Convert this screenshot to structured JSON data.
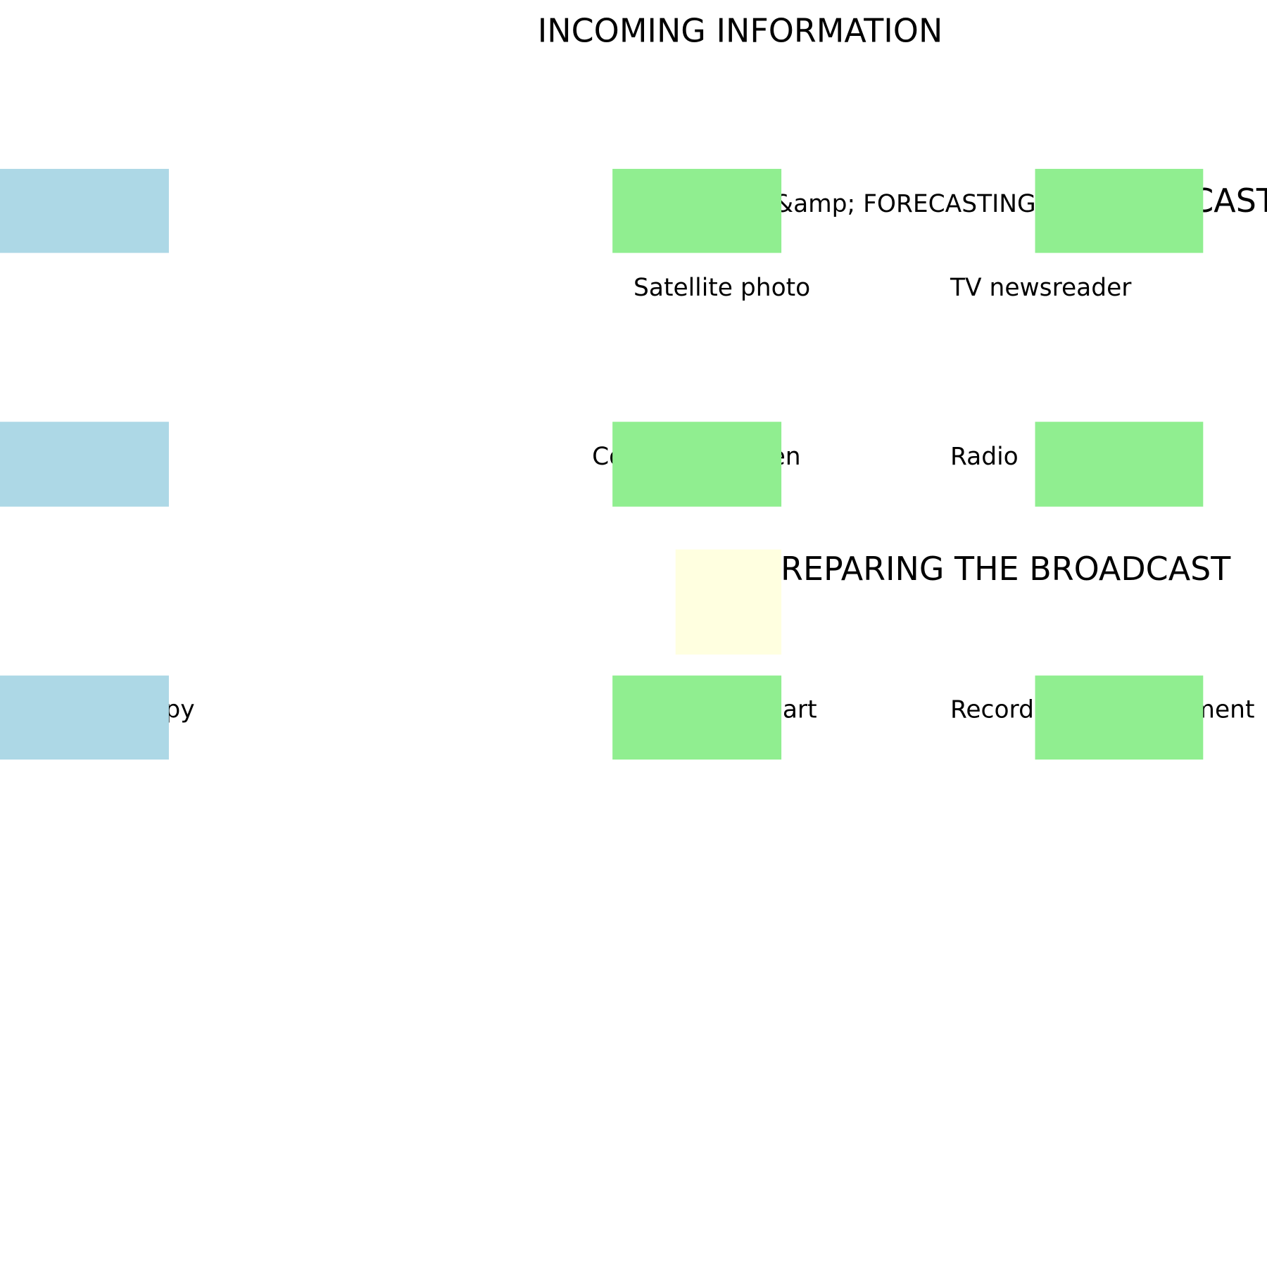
{
  "title": "INCOMING INFORMATION",
  "sections": [
    "ANALYSIS &amp; FORECASTING",
    "BROADCAST",
    "PREPARING THE BROADCAST"
  ],
  "items": [
    "Satellite photo",
    "TV newsreader",
    "Computer screen",
    "Radio",
    "Hard copy",
    "Weather chart",
    "Recorded announcement"
  ]
}
